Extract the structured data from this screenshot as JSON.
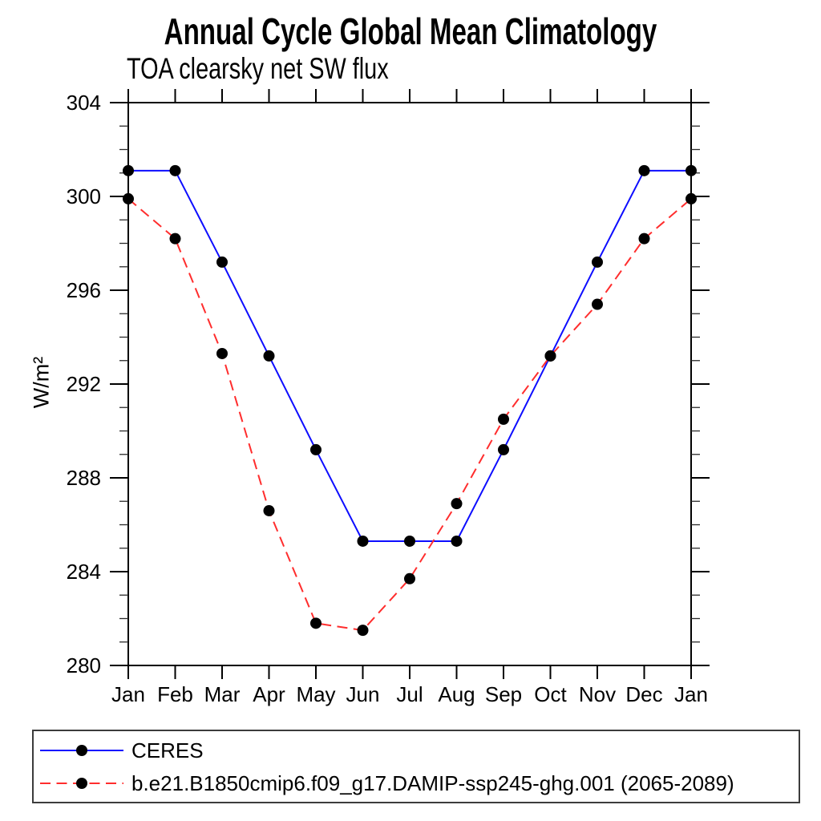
{
  "chart_data": {
    "type": "line",
    "title": "Annual Cycle Global Mean Climatology",
    "subtitle": "TOA clearsky net SW flux",
    "ylabel": "W/m²",
    "xlabel": "",
    "categories": [
      "Jan",
      "Feb",
      "Mar",
      "Apr",
      "May",
      "Jun",
      "Jul",
      "Aug",
      "Sep",
      "Oct",
      "Nov",
      "Dec",
      "Jan"
    ],
    "ylim": [
      280,
      304
    ],
    "y_major_ticks": [
      280,
      284,
      288,
      292,
      296,
      300,
      304
    ],
    "y_minor_tick_interval": 1,
    "grid": false,
    "legend_position": "bottom-left-box",
    "axis_color": "#000000",
    "series": [
      {
        "name": "CERES",
        "color": "#0d0dff",
        "line_style": "solid",
        "marker": "filled-circle",
        "marker_color": "#000000",
        "values": [
          301.1,
          301.1,
          297.2,
          293.2,
          289.2,
          285.3,
          285.3,
          285.3,
          289.2,
          293.2,
          297.2,
          301.1,
          301.1
        ]
      },
      {
        "name": "b.e21.B1850cmip6.f09_g17.DAMIP-ssp245-ghg.001 (2065-2089)",
        "color": "#ff2d2d",
        "line_style": "dashed",
        "marker": "filled-circle",
        "marker_color": "#000000",
        "values": [
          299.9,
          298.2,
          293.3,
          286.6,
          281.8,
          281.5,
          283.7,
          286.9,
          290.5,
          293.2,
          295.4,
          298.2,
          299.9
        ]
      }
    ]
  }
}
